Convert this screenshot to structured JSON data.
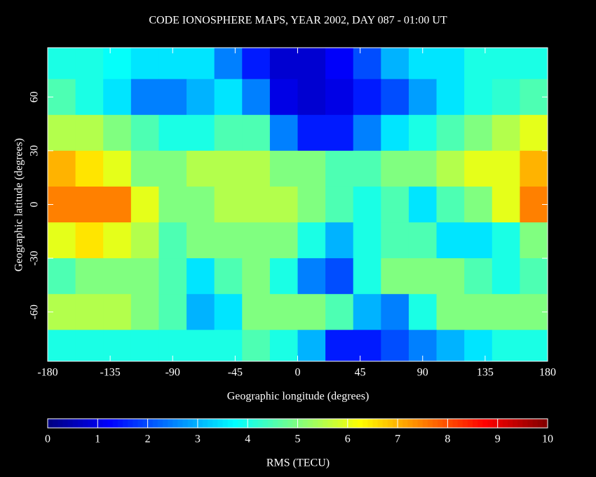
{
  "chart_data": {
    "type": "heatmap",
    "title": "CODE IONOSPHERE MAPS, YEAR 2002, DAY 087 - 01:00 UT",
    "x_label": "Geographic longitude (degrees)",
    "y_label": "Geographic latitude (degrees)",
    "colorbar_label": "RMS (TECU)",
    "colormap": "jet",
    "x": [
      -170,
      -150,
      -130,
      -110,
      -90,
      -70,
      -50,
      -30,
      -10,
      10,
      30,
      50,
      70,
      90,
      110,
      130,
      150,
      170
    ],
    "y": [
      80,
      60,
      40,
      20,
      0,
      -20,
      -40,
      -60,
      -80
    ],
    "values": [
      [
        4,
        4,
        3.8,
        3.5,
        3.5,
        3.5,
        2.5,
        1.5,
        0.8,
        0.8,
        1.2,
        2,
        3,
        3.5,
        3.5,
        4,
        4,
        4
      ],
      [
        4.5,
        4,
        3.5,
        2.5,
        2.5,
        3,
        3.5,
        2.5,
        1,
        0.8,
        1,
        1.5,
        2,
        2.8,
        3.5,
        4,
        4.2,
        4.5
      ],
      [
        5.5,
        5.5,
        5,
        4.5,
        4,
        4,
        4.5,
        4.5,
        2.5,
        1.5,
        1.5,
        2.5,
        3.5,
        4,
        4.5,
        5,
        5.5,
        6
      ],
      [
        7,
        6.5,
        6,
        5,
        5,
        5.5,
        5.5,
        5.5,
        5,
        5,
        4.5,
        4.5,
        5,
        5,
        5.5,
        6,
        6,
        7
      ],
      [
        7.5,
        7.5,
        7.5,
        6,
        5,
        5,
        5.5,
        5.5,
        5.5,
        5,
        4.5,
        4,
        4.5,
        3.5,
        4.5,
        5,
        6,
        7.5
      ],
      [
        6,
        6.5,
        6,
        5.5,
        4.5,
        5,
        5,
        5,
        5,
        4,
        3,
        4,
        4.5,
        4.5,
        3.5,
        3.5,
        4,
        5
      ],
      [
        4.5,
        5,
        5,
        5,
        4.5,
        3.5,
        4.5,
        5,
        4,
        2.5,
        2,
        4,
        5,
        5,
        5,
        4.5,
        4,
        4.5
      ],
      [
        5.5,
        5.5,
        5.5,
        5,
        4.5,
        3,
        3.5,
        5,
        5,
        5,
        4.5,
        3,
        2.5,
        4,
        5,
        5,
        5,
        5
      ],
      [
        4,
        4,
        4,
        4,
        4,
        4,
        4,
        4.5,
        4,
        3,
        1.5,
        1.5,
        2,
        2.5,
        3,
        3.5,
        4,
        4
      ]
    ],
    "xlim": [
      -180,
      180
    ],
    "ylim": [
      -87.5,
      87.5
    ],
    "xticks": [
      -180,
      -135,
      -90,
      -45,
      0,
      45,
      90,
      135,
      180
    ],
    "yticks": [
      -60,
      -30,
      0,
      30,
      60
    ],
    "clim": [
      0,
      10
    ],
    "cticks": [
      0,
      1,
      2,
      3,
      4,
      5,
      6,
      7,
      8,
      9,
      10
    ]
  }
}
